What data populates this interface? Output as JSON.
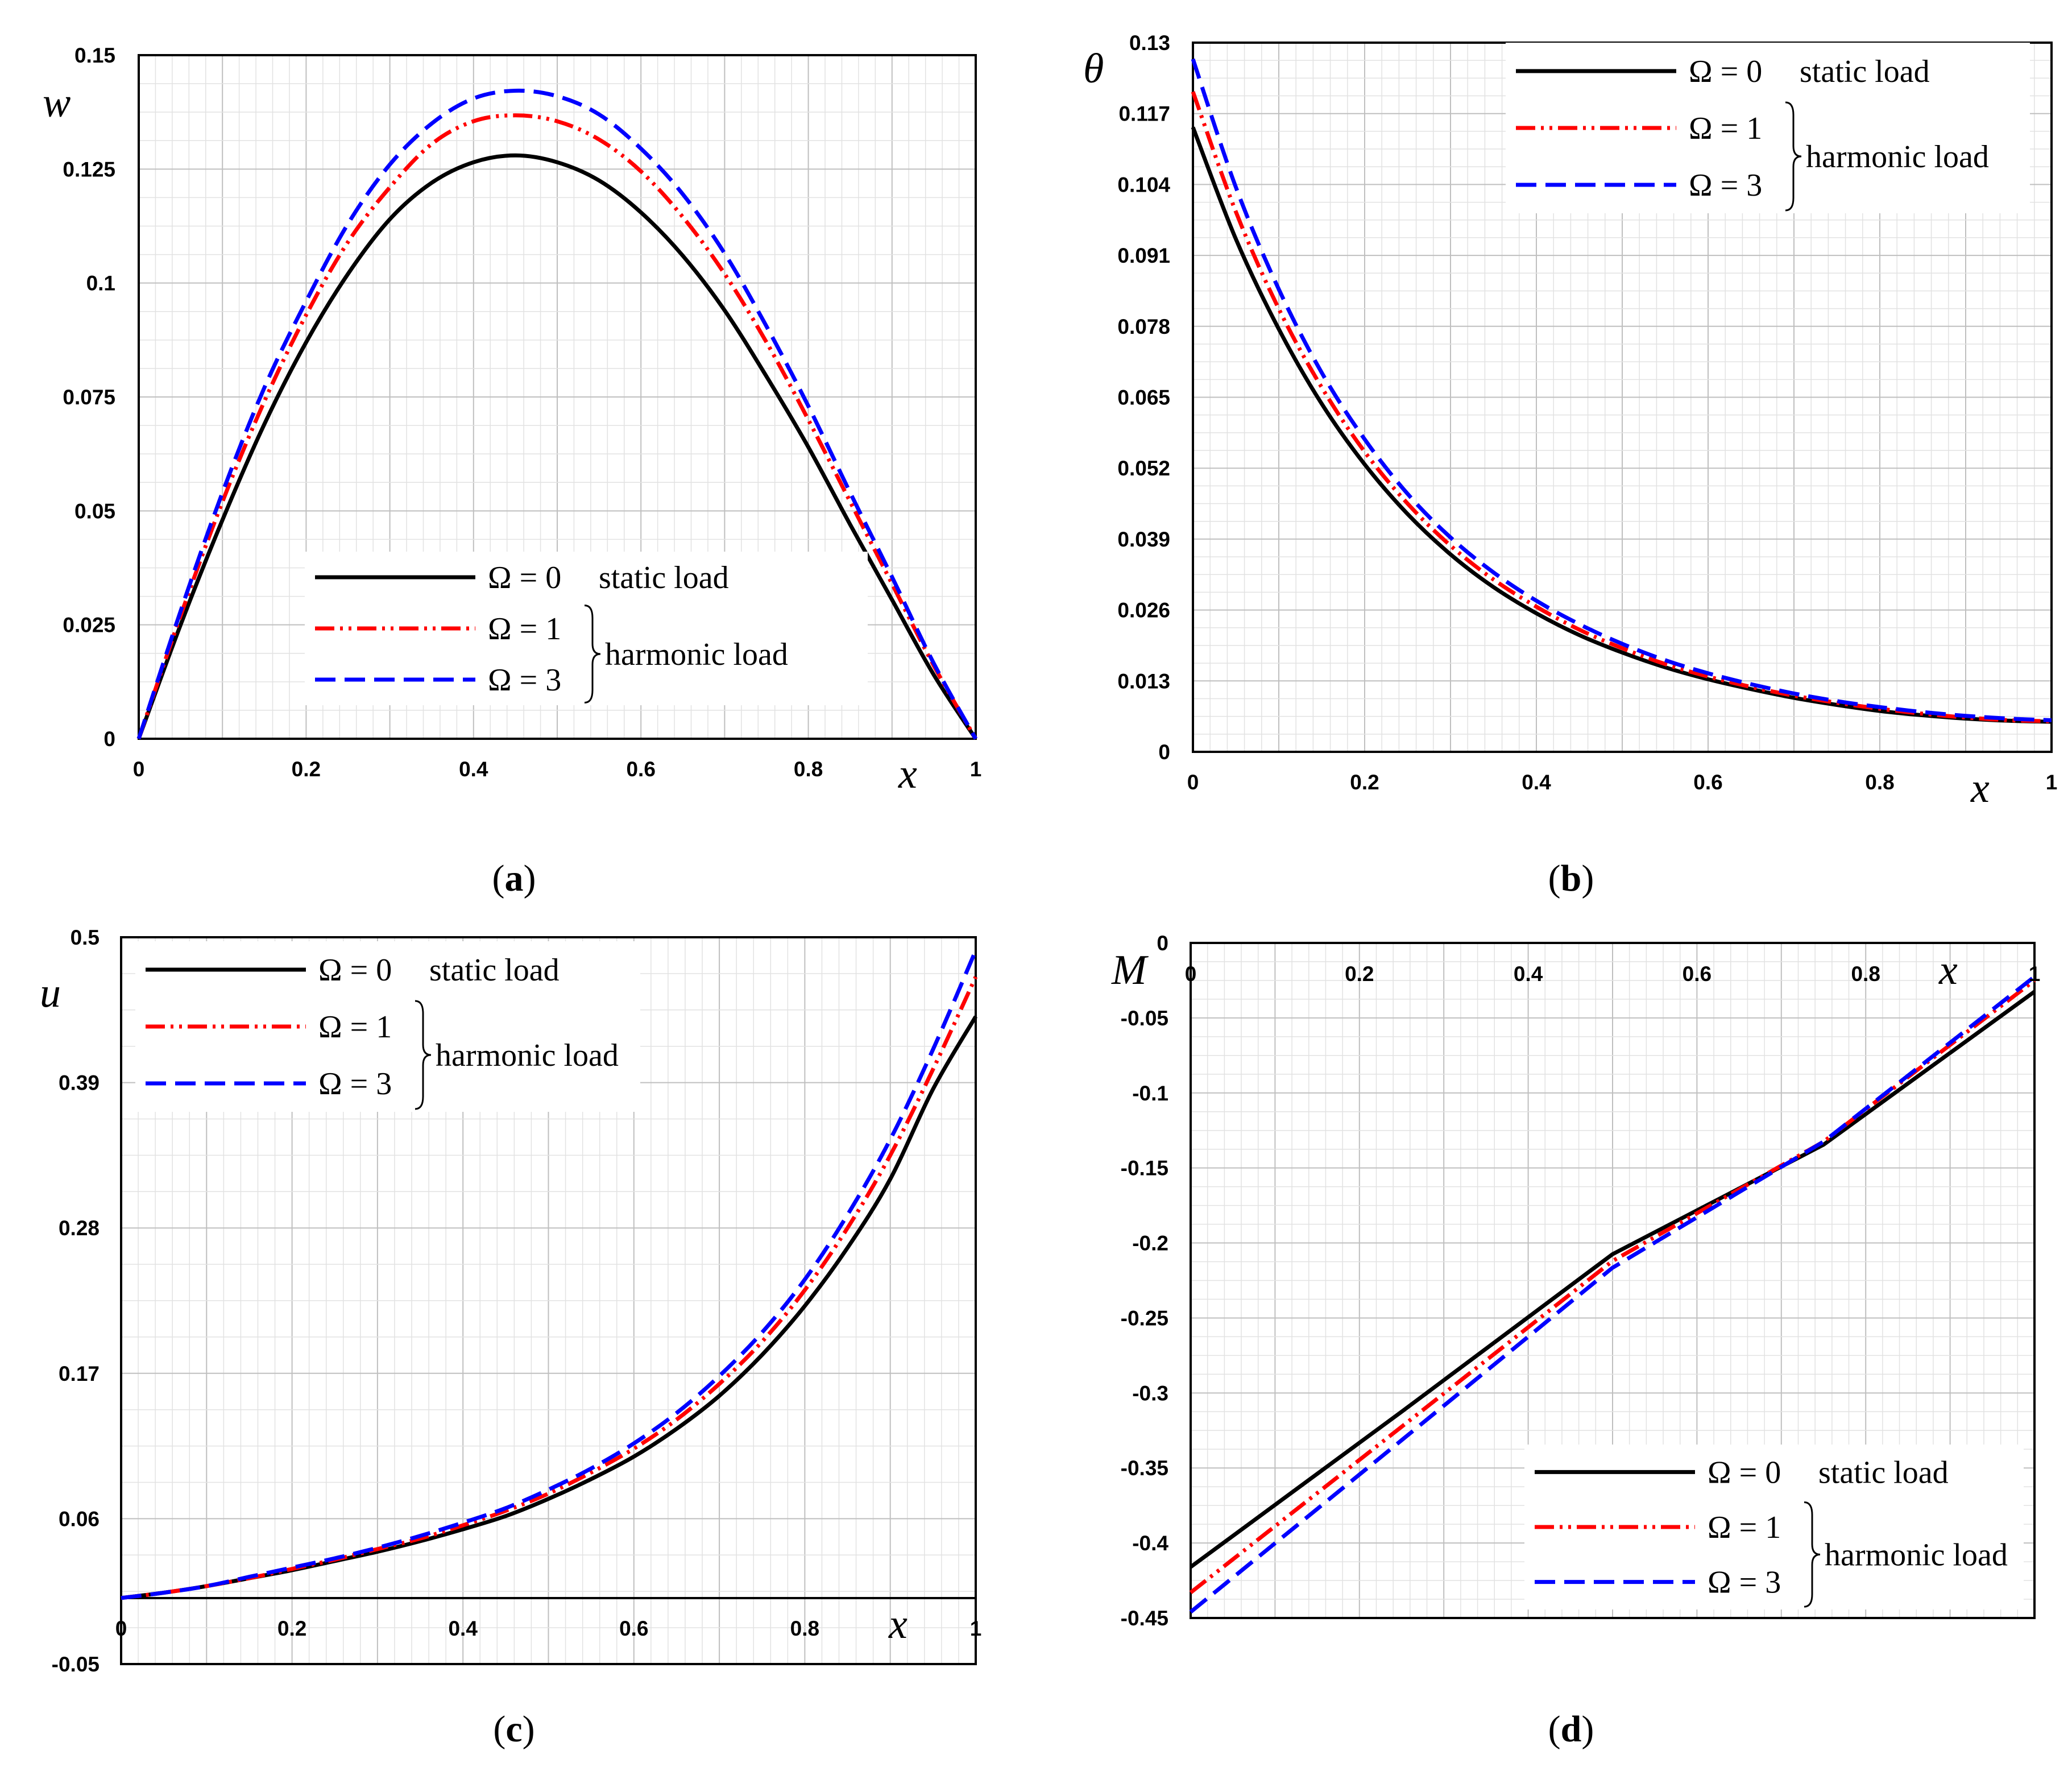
{
  "colors": {
    "static": "#000000",
    "harmonic_1": "#ff0000",
    "harmonic_3": "#0000ff"
  },
  "legend": {
    "omega0": "Ω = 0",
    "omega0_desc": "static  load",
    "omega1": "Ω = 1",
    "omega3": "Ω = 3",
    "harmonic_desc": "harmonic load"
  },
  "chart_data": [
    {
      "id": "a",
      "type": "line",
      "caption": "(a)",
      "caption_letter": "a",
      "ylabel": "w",
      "xlabel": "x",
      "xlim": [
        0,
        1
      ],
      "ylim": [
        0,
        0.15
      ],
      "xticks": [
        0,
        0.2,
        0.4,
        0.6,
        0.8,
        1
      ],
      "xtick_labels": [
        "0",
        "0.2",
        "0.4",
        "0.6",
        "0.8",
        "1"
      ],
      "yticks": [
        0,
        0.025,
        0.05,
        0.075,
        0.1,
        0.125,
        0.15
      ],
      "ytick_labels": [
        "0",
        "0.025",
        "0.05",
        "0.075",
        "0.1",
        "0.125",
        "0.15"
      ],
      "grid": true,
      "legend_position": "bottom-center",
      "x": [
        0,
        0.05,
        0.1,
        0.15,
        0.2,
        0.25,
        0.3,
        0.35,
        0.4,
        0.45,
        0.5,
        0.55,
        0.6,
        0.65,
        0.7,
        0.75,
        0.8,
        0.85,
        0.9,
        0.95,
        1
      ],
      "series": [
        {
          "name": "Ω = 0 static load",
          "style": "solid",
          "values": [
            0,
            0.025,
            0.048,
            0.069,
            0.087,
            0.102,
            0.114,
            0.122,
            0.1265,
            0.128,
            0.1265,
            0.1225,
            0.1155,
            0.106,
            0.094,
            0.0795,
            0.064,
            0.047,
            0.0305,
            0.014,
            0
          ]
        },
        {
          "name": "Ω = 1 harmonic load",
          "style": "dashdotdot",
          "values": [
            0,
            0.027,
            0.052,
            0.074,
            0.093,
            0.109,
            0.121,
            0.1305,
            0.1355,
            0.1368,
            0.1355,
            0.1315,
            0.1245,
            0.1145,
            0.102,
            0.087,
            0.07,
            0.052,
            0.034,
            0.016,
            0
          ]
        },
        {
          "name": "Ω = 3 harmonic load",
          "style": "dashed",
          "values": [
            0,
            0.028,
            0.054,
            0.077,
            0.096,
            0.113,
            0.126,
            0.135,
            0.1405,
            0.1422,
            0.141,
            0.137,
            0.1295,
            0.1195,
            0.1065,
            0.0905,
            0.073,
            0.054,
            0.0355,
            0.0165,
            0
          ]
        }
      ]
    },
    {
      "id": "b",
      "type": "line",
      "caption": "(b)",
      "caption_letter": "b",
      "ylabel": "θ",
      "xlabel": "x",
      "xlim": [
        0,
        1
      ],
      "ylim": [
        0,
        0.13
      ],
      "xticks": [
        0,
        0.2,
        0.4,
        0.6,
        0.8,
        1
      ],
      "xtick_labels": [
        "0",
        "0.2",
        "0.4",
        "0.6",
        "0.8",
        "1"
      ],
      "yticks": [
        0,
        0.013,
        0.026,
        0.039,
        0.052,
        0.065,
        0.078,
        0.091,
        0.104,
        0.117,
        0.13
      ],
      "ytick_labels": [
        "0",
        "0.013",
        "0.026",
        "0.039",
        "0.052",
        "0.065",
        "0.078",
        "0.091",
        "0.104",
        "0.117",
        "0.13"
      ],
      "grid": true,
      "legend_position": "top-right",
      "x": [
        0,
        0.05,
        0.1,
        0.15,
        0.2,
        0.25,
        0.3,
        0.35,
        0.4,
        0.45,
        0.5,
        0.55,
        0.6,
        0.65,
        0.7,
        0.75,
        0.8,
        0.85,
        0.9,
        0.95,
        1
      ],
      "series": [
        {
          "name": "Ω = 0 static load",
          "style": "solid",
          "values": [
            0.1145,
            0.094,
            0.0775,
            0.0638,
            0.0527,
            0.0436,
            0.0362,
            0.0302,
            0.0254,
            0.0214,
            0.0182,
            0.0155,
            0.0133,
            0.0115,
            0.0099,
            0.0086,
            0.0075,
            0.0067,
            0.0061,
            0.0057,
            0.0055
          ]
        },
        {
          "name": "Ω = 1 harmonic load",
          "style": "dashdotdot",
          "values": [
            0.121,
            0.099,
            0.0812,
            0.0668,
            0.055,
            0.0455,
            0.0378,
            0.0316,
            0.0266,
            0.0224,
            0.019,
            0.0161,
            0.0138,
            0.0119,
            0.0103,
            0.009,
            0.0079,
            0.007,
            0.0063,
            0.0058,
            0.0056
          ]
        },
        {
          "name": "Ω = 3 harmonic load",
          "style": "dashed",
          "values": [
            0.127,
            0.1035,
            0.0848,
            0.0695,
            0.0573,
            0.0473,
            0.0393,
            0.0329,
            0.0277,
            0.0234,
            0.0198,
            0.0168,
            0.0144,
            0.0124,
            0.0107,
            0.0093,
            0.0082,
            0.0073,
            0.0066,
            0.0061,
            0.0058
          ]
        }
      ]
    },
    {
      "id": "c",
      "type": "line",
      "caption": "(c)",
      "caption_letter": "c",
      "ylabel": "u",
      "xlabel": "x",
      "xlim": [
        0,
        1
      ],
      "ylim": [
        -0.05,
        0.5
      ],
      "xticks": [
        0,
        0.2,
        0.4,
        0.6,
        0.8,
        1
      ],
      "xtick_labels": [
        "0",
        "0.2",
        "0.4",
        "0.6",
        "0.8",
        "1"
      ],
      "yticks": [
        -0.05,
        0.06,
        0.17,
        0.28,
        0.39,
        0.5
      ],
      "ytick_labels": [
        "-0.05",
        "0.06",
        "0.17",
        "0.28",
        "0.39",
        "0.5"
      ],
      "grid": true,
      "legend_position": "top-left",
      "x": [
        0,
        0.05,
        0.1,
        0.15,
        0.2,
        0.25,
        0.3,
        0.35,
        0.4,
        0.45,
        0.5,
        0.55,
        0.6,
        0.65,
        0.7,
        0.75,
        0.8,
        0.85,
        0.9,
        0.95,
        1
      ],
      "series": [
        {
          "name": "Ω = 0 static load",
          "style": "solid",
          "values": [
            0,
            0.004,
            0.009,
            0.015,
            0.021,
            0.028,
            0.035,
            0.043,
            0.052,
            0.062,
            0.075,
            0.09,
            0.107,
            0.128,
            0.153,
            0.184,
            0.221,
            0.265,
            0.317,
            0.385,
            0.44
          ]
        },
        {
          "name": "Ω = 1 harmonic load",
          "style": "dashdotdot",
          "values": [
            0,
            0.004,
            0.009,
            0.015,
            0.022,
            0.029,
            0.037,
            0.045,
            0.055,
            0.066,
            0.079,
            0.095,
            0.113,
            0.135,
            0.162,
            0.194,
            0.233,
            0.28,
            0.335,
            0.4,
            0.47
          ]
        },
        {
          "name": "Ω = 3 harmonic load",
          "style": "dashed",
          "values": [
            0,
            0.004,
            0.009,
            0.016,
            0.023,
            0.03,
            0.038,
            0.047,
            0.057,
            0.068,
            0.082,
            0.098,
            0.117,
            0.14,
            0.168,
            0.201,
            0.241,
            0.29,
            0.347,
            0.415,
            0.49
          ]
        }
      ]
    },
    {
      "id": "d",
      "type": "line",
      "caption": "(d)",
      "caption_letter": "d",
      "ylabel": "M",
      "xlabel": "x",
      "xlim": [
        0,
        1
      ],
      "ylim": [
        -0.45,
        0
      ],
      "xticks": [
        0,
        0.2,
        0.4,
        0.6,
        0.8,
        1
      ],
      "xtick_labels": [
        "0",
        "0.2",
        "0.4",
        "0.6",
        "0.8",
        "1"
      ],
      "yticks": [
        0,
        -0.05,
        -0.1,
        -0.15,
        -0.2,
        -0.25,
        -0.3,
        -0.35,
        -0.4,
        -0.45
      ],
      "ytick_labels": [
        "0",
        "-0.05",
        "-0.1",
        "-0.15",
        "-0.2",
        "-0.25",
        "-0.3",
        "-0.35",
        "-0.4",
        "-0.45"
      ],
      "grid": true,
      "legend_position": "bottom-right",
      "x": [
        0,
        0.25,
        0.5,
        0.75,
        1
      ],
      "series": [
        {
          "name": "Ω = 0 static load",
          "style": "solid",
          "values": [
            -0.416,
            -0.3125,
            -0.2075,
            -0.1345,
            -0.0325
          ]
        },
        {
          "name": "Ω = 1 harmonic load",
          "style": "dashdotdot",
          "values": [
            -0.433,
            -0.3225,
            -0.212,
            -0.1325,
            -0.025
          ]
        },
        {
          "name": "Ω = 3 harmonic load",
          "style": "dashed",
          "values": [
            -0.446,
            -0.3315,
            -0.2165,
            -0.1325,
            -0.0225
          ]
        }
      ]
    }
  ]
}
